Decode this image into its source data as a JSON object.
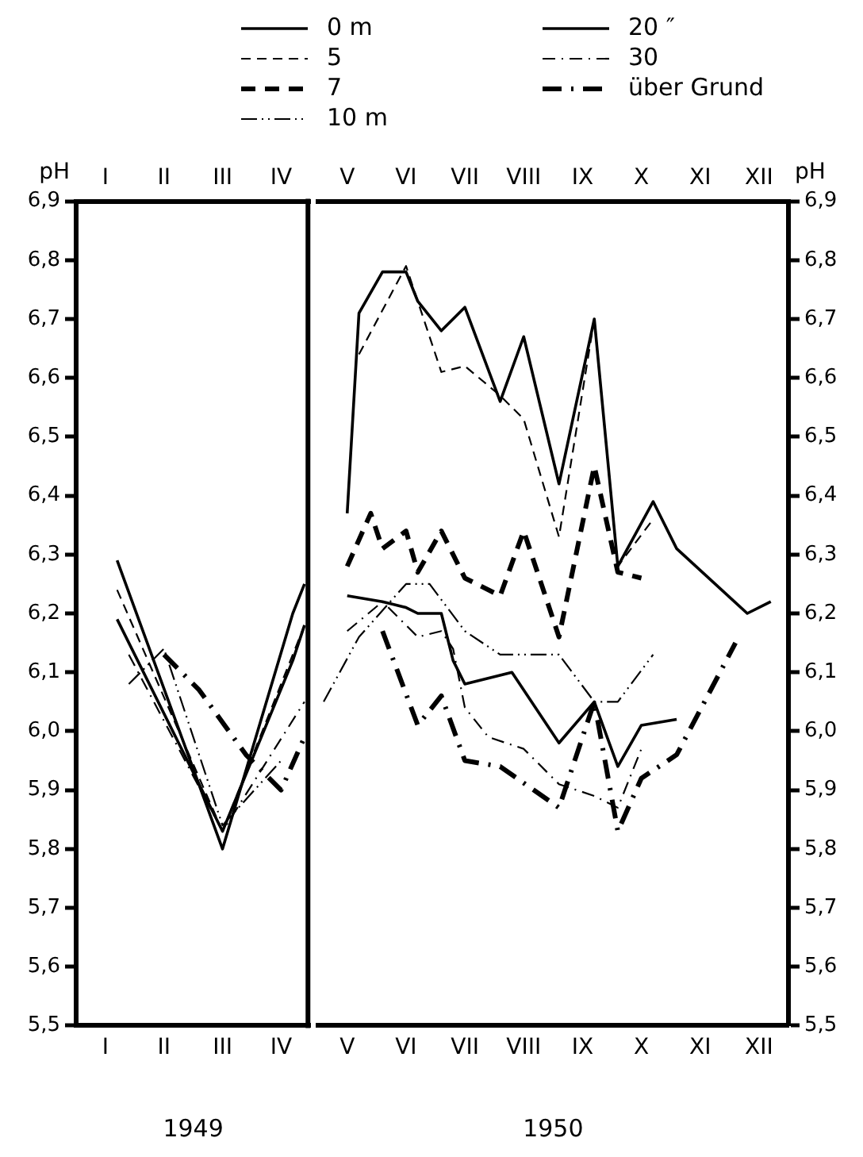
{
  "chart_data": [
    {
      "type": "line",
      "ylabel": "pH",
      "xlabel": "1949",
      "categories": [
        null,
        null,
        "I",
        null,
        null,
        null,
        null,
        "II",
        null,
        null,
        null,
        null,
        "III",
        null,
        null,
        null,
        null,
        "IV",
        null,
        null
      ],
      "ylim": [
        5.5,
        6.9
      ],
      "yticks": [
        {
          "value": 5.5,
          "label": "5,5"
        },
        {
          "value": 5.6,
          "label": "5,6"
        },
        {
          "value": 5.7,
          "label": "5,7"
        },
        {
          "value": 5.8,
          "label": "5,8"
        },
        {
          "value": 5.9,
          "label": "5,9"
        },
        {
          "value": 6.0,
          "label": "6,0"
        },
        {
          "value": 6.1,
          "label": "6,1"
        },
        {
          "value": 6.2,
          "label": "6,2"
        },
        {
          "value": 6.3,
          "label": "6,3"
        },
        {
          "value": 6.4,
          "label": "6,4"
        },
        {
          "value": 6.5,
          "label": "6,5"
        },
        {
          "value": 6.6,
          "label": "6,6"
        },
        {
          "value": 6.7,
          "label": "6,7"
        },
        {
          "value": 6.8,
          "label": "6,8"
        },
        {
          "value": 6.9,
          "label": "6,9"
        }
      ],
      "grid": false,
      "marker": "none",
      "series": [
        {
          "color": "#000000",
          "line_style": "solid",
          "values": [
            null,
            null,
            null,
            6.29,
            null,
            null,
            null,
            null,
            null,
            null,
            null,
            null,
            5.8,
            null,
            null,
            null,
            null,
            null,
            6.2,
            6.25
          ]
        },
        {
          "color": "#000000",
          "line_style": "dashed",
          "values": [
            null,
            null,
            null,
            6.24,
            null,
            null,
            null,
            null,
            null,
            null,
            null,
            null,
            5.83,
            null,
            null,
            null,
            null,
            null,
            null,
            6.18
          ]
        },
        {
          "color": "#000000",
          "line_style": "dashdotdot",
          "values": [
            null,
            null,
            null,
            null,
            6.08,
            null,
            null,
            6.14,
            null,
            null,
            null,
            null,
            5.84,
            null,
            null,
            null,
            null,
            5.95,
            null,
            null
          ]
        },
        {
          "color": "#000000",
          "line_style": "solid",
          "values": [
            null,
            null,
            null,
            6.19,
            null,
            null,
            null,
            null,
            null,
            null,
            null,
            null,
            5.83,
            null,
            null,
            null,
            null,
            null,
            6.12,
            6.18
          ]
        },
        {
          "color": "#000000",
          "line_style": "dashdot",
          "values": [
            null,
            null,
            null,
            null,
            6.13,
            null,
            null,
            null,
            null,
            null,
            null,
            null,
            5.83,
            null,
            null,
            null,
            null,
            null,
            null,
            6.05
          ]
        },
        {
          "color": "#000000",
          "line_style": "thick dashdot",
          "values": [
            null,
            null,
            null,
            null,
            null,
            null,
            null,
            6.13,
            null,
            null,
            6.07,
            null,
            null,
            null,
            5.96,
            null,
            null,
            5.9,
            null,
            5.99
          ]
        }
      ]
    },
    {
      "type": "line",
      "y2label": "pH",
      "xlabel": "1950",
      "categories": [
        null,
        null,
        "V",
        null,
        null,
        null,
        null,
        "VI",
        null,
        null,
        null,
        null,
        "VII",
        null,
        null,
        null,
        null,
        "VIII",
        null,
        null,
        null,
        null,
        "IX",
        null,
        null,
        null,
        null,
        "X",
        null,
        null,
        null,
        null,
        "XI",
        null,
        null,
        null,
        null,
        "XII",
        null,
        null
      ],
      "y2lim": [
        5.5,
        6.9
      ],
      "y2ticks": [
        {
          "value": 5.5,
          "label": "5,5"
        },
        {
          "value": 5.6,
          "label": "5,6"
        },
        {
          "value": 5.7,
          "label": "5,7"
        },
        {
          "value": 5.8,
          "label": "5,8"
        },
        {
          "value": 5.9,
          "label": "5,9"
        },
        {
          "value": 6.0,
          "label": "6,0"
        },
        {
          "value": 6.1,
          "label": "6,1"
        },
        {
          "value": 6.2,
          "label": "6,2"
        },
        {
          "value": 6.3,
          "label": "6,3"
        },
        {
          "value": 6.4,
          "label": "6,4"
        },
        {
          "value": 6.5,
          "label": "6,5"
        },
        {
          "value": 6.6,
          "label": "6,6"
        },
        {
          "value": 6.7,
          "label": "6,7"
        },
        {
          "value": 6.8,
          "label": "6,8"
        },
        {
          "value": 6.9,
          "label": "6,9"
        }
      ],
      "grid": false,
      "marker": "none",
      "legend": "top",
      "series": [
        {
          "name": "0 m",
          "color": "#000000",
          "line_style": "solid",
          "axis": "y2",
          "values": [
            null,
            null,
            6.37,
            6.71,
            null,
            6.78,
            null,
            6.78,
            6.73,
            null,
            6.68,
            null,
            6.72,
            null,
            null,
            6.56,
            null,
            6.67,
            null,
            null,
            6.42,
            null,
            null,
            6.7,
            null,
            6.28,
            null,
            null,
            6.39,
            null,
            6.31,
            null,
            null,
            null,
            null,
            null,
            6.2,
            null,
            6.22,
            null
          ]
        },
        {
          "name": "5",
          "color": "#000000",
          "line_style": "dashed",
          "axis": "y2",
          "values": [
            null,
            null,
            null,
            6.64,
            null,
            null,
            null,
            6.79,
            null,
            null,
            6.61,
            null,
            6.62,
            null,
            null,
            6.57,
            null,
            6.53,
            null,
            null,
            6.33,
            null,
            null,
            6.7,
            null,
            6.28,
            null,
            null,
            6.36,
            null,
            null,
            null,
            null,
            null,
            null,
            null,
            null,
            null,
            null,
            null
          ]
        },
        {
          "name": "7",
          "color": "#000000",
          "line_style": "thick dashed",
          "axis": "y2",
          "values": [
            null,
            null,
            6.28,
            null,
            6.37,
            6.31,
            null,
            6.34,
            6.27,
            null,
            6.34,
            null,
            6.26,
            null,
            null,
            6.23,
            null,
            6.34,
            null,
            null,
            6.16,
            null,
            null,
            6.45,
            null,
            6.27,
            null,
            6.26,
            null,
            null,
            null,
            null,
            null,
            null,
            null,
            null,
            null,
            null,
            null,
            null
          ]
        },
        {
          "name": "10 m",
          "color": "#000000",
          "line_style": "dashdotdot",
          "axis": "y2",
          "values": [
            6.05,
            null,
            null,
            6.16,
            null,
            null,
            null,
            6.25,
            null,
            6.25,
            null,
            null,
            6.17,
            null,
            null,
            6.13,
            null,
            null,
            null,
            null,
            6.13,
            null,
            null,
            6.05,
            null,
            6.05,
            null,
            null,
            6.13,
            null,
            null,
            null,
            null,
            null,
            null,
            null,
            null,
            null,
            null,
            null
          ]
        },
        {
          "name": "20 ″",
          "color": "#000000",
          "line_style": "solid",
          "axis": "y2",
          "values": [
            null,
            null,
            6.23,
            null,
            null,
            6.22,
            null,
            6.21,
            6.2,
            null,
            6.2,
            6.12,
            6.08,
            null,
            null,
            null,
            6.1,
            null,
            null,
            6.01,
            5.98,
            null,
            null,
            6.05,
            null,
            5.94,
            null,
            6.01,
            null,
            null,
            6.02,
            null,
            null,
            null,
            null,
            null,
            null,
            null,
            null,
            null
          ]
        },
        {
          "name": "30",
          "color": "#000000",
          "line_style": "dashdot",
          "axis": "y2",
          "values": [
            null,
            null,
            6.17,
            null,
            null,
            6.22,
            null,
            null,
            6.16,
            null,
            6.17,
            6.14,
            6.04,
            null,
            5.99,
            null,
            null,
            5.97,
            null,
            null,
            5.91,
            null,
            null,
            5.89,
            null,
            5.87,
            null,
            5.97,
            null,
            null,
            null,
            null,
            null,
            null,
            null,
            null,
            null,
            null,
            null,
            null
          ]
        },
        {
          "name": "über Grund",
          "color": "#000000",
          "line_style": "thick dashdot",
          "axis": "y2",
          "values": [
            null,
            null,
            null,
            null,
            null,
            6.17,
            null,
            null,
            6.01,
            null,
            6.06,
            null,
            5.95,
            null,
            null,
            5.94,
            null,
            null,
            null,
            null,
            5.87,
            null,
            null,
            6.05,
            null,
            5.83,
            null,
            5.92,
            null,
            null,
            5.96,
            null,
            null,
            null,
            null,
            6.15,
            null,
            null,
            null,
            null
          ]
        }
      ]
    }
  ]
}
